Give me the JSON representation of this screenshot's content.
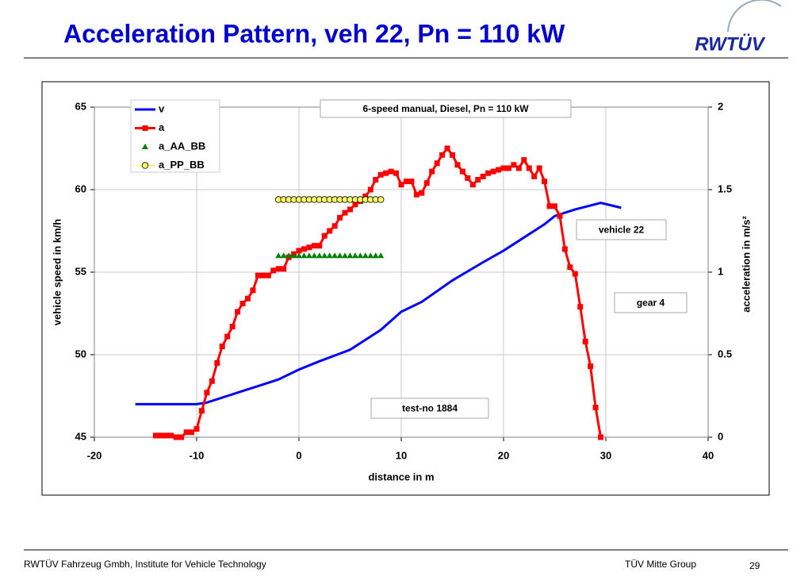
{
  "title": "Acceleration Pattern, veh 22, Pn = 110 kW",
  "logo": "RWTÜV",
  "footer": {
    "left": "RWTÜV Fahrzeug Gmbh, Institute for Vehicle Technology",
    "center": "TÜV Mitte Group",
    "page": "29"
  },
  "chart_data": {
    "type": "line",
    "xlabel": "distance in m",
    "ylabel": "vehicle speed in km/h",
    "y2label": "acceleration in m/s²",
    "xlim": [
      -20,
      40
    ],
    "xticks": [
      -20,
      -10,
      0,
      10,
      20,
      30,
      40
    ],
    "ylim": [
      45,
      65
    ],
    "yticks": [
      45,
      50,
      55,
      60,
      65
    ],
    "y2lim": [
      0,
      2
    ],
    "y2ticks": [
      0,
      0.5,
      1,
      1.5,
      2
    ],
    "grid": true,
    "legend": "upper left",
    "annotations": [
      "6-speed manual, Diesel, Pn = 110 kW",
      "vehicle 22",
      "gear 4",
      "test-no 1884"
    ],
    "series": [
      {
        "name": "v",
        "color": "#0000ff",
        "marker": null,
        "line": true,
        "x": [
          -16,
          -13,
          -10,
          -9,
          -8,
          -7,
          -6,
          -4,
          -2,
          0,
          2,
          5,
          8,
          10,
          12,
          15,
          18,
          20,
          22,
          24,
          25,
          27,
          29.5,
          31.5
        ],
        "values": [
          47.0,
          47.0,
          47.0,
          47.1,
          47.3,
          47.5,
          47.7,
          48.1,
          48.5,
          49.1,
          49.6,
          50.3,
          51.5,
          52.6,
          53.2,
          54.5,
          55.6,
          56.3,
          57.1,
          57.9,
          58.4,
          58.8,
          59.2,
          58.9
        ]
      },
      {
        "name": "a",
        "color": "#ff0000",
        "marker": "square",
        "line": true,
        "axis": "y2",
        "x": [
          -14,
          -13.5,
          -13,
          -12.5,
          -12,
          -11.5,
          -11,
          -10.5,
          -10,
          -9.5,
          -9,
          -8.5,
          -8,
          -7.5,
          -7,
          -6.5,
          -6,
          -5.5,
          -5,
          -4.5,
          -4,
          -3.5,
          -3,
          -2.5,
          -2,
          -1.5,
          -1,
          -0.5,
          0,
          0.5,
          1,
          1.5,
          2,
          2.5,
          3,
          3.5,
          4,
          4.5,
          5,
          5.5,
          6,
          6.5,
          7,
          7.5,
          8,
          8.5,
          9,
          9.5,
          10,
          10.5,
          11,
          11.5,
          12,
          12.5,
          13,
          13.5,
          14,
          14.5,
          15,
          15.5,
          16,
          16.5,
          17,
          17.5,
          18,
          18.5,
          19,
          19.5,
          20,
          20.5,
          21,
          21.5,
          22,
          22.5,
          23,
          23.5,
          24,
          24.5,
          25,
          25.5,
          26,
          26.5,
          27,
          27.5,
          28,
          28.5,
          29,
          29.5
        ],
        "values": [
          0.01,
          0.01,
          0.01,
          0.01,
          0.0,
          0.0,
          0.03,
          0.03,
          0.05,
          0.16,
          0.27,
          0.34,
          0.45,
          0.55,
          0.61,
          0.67,
          0.76,
          0.81,
          0.84,
          0.89,
          0.98,
          0.98,
          0.98,
          1.01,
          1.02,
          1.02,
          1.09,
          1.11,
          1.13,
          1.14,
          1.15,
          1.16,
          1.16,
          1.22,
          1.25,
          1.28,
          1.33,
          1.36,
          1.38,
          1.41,
          1.43,
          1.46,
          1.5,
          1.56,
          1.59,
          1.6,
          1.61,
          1.6,
          1.53,
          1.55,
          1.55,
          1.47,
          1.48,
          1.54,
          1.61,
          1.66,
          1.71,
          1.75,
          1.71,
          1.65,
          1.61,
          1.57,
          1.53,
          1.56,
          1.58,
          1.6,
          1.61,
          1.62,
          1.63,
          1.63,
          1.65,
          1.63,
          1.68,
          1.63,
          1.58,
          1.63,
          1.55,
          1.4,
          1.4,
          1.34,
          1.14,
          1.03,
          0.99,
          0.79,
          0.58,
          0.43,
          0.18,
          0.0
        ]
      },
      {
        "name": "a_AA_BB",
        "color": "#008000",
        "marker": "triangle",
        "line": false,
        "axis": "y2",
        "x": [
          -2,
          -1.5,
          -1,
          -0.5,
          0,
          0.5,
          1,
          1.5,
          2,
          2.5,
          3,
          3.5,
          4,
          4.5,
          5,
          5.5,
          6,
          6.5,
          7,
          7.5,
          8
        ],
        "values": [
          1.1,
          1.1,
          1.1,
          1.1,
          1.1,
          1.1,
          1.1,
          1.1,
          1.1,
          1.1,
          1.1,
          1.1,
          1.1,
          1.1,
          1.1,
          1.1,
          1.1,
          1.1,
          1.1,
          1.1,
          1.1
        ]
      },
      {
        "name": "a_PP_BB",
        "color": "#ffff66",
        "marker": "circle",
        "line": false,
        "axis": "y2",
        "x": [
          -2,
          -1.5,
          -1,
          -0.5,
          0,
          0.5,
          1,
          1.5,
          2,
          2.5,
          3,
          3.5,
          4,
          4.5,
          5,
          5.5,
          6,
          6.5,
          7,
          7.5,
          8
        ],
        "values": [
          1.44,
          1.44,
          1.44,
          1.44,
          1.44,
          1.44,
          1.44,
          1.44,
          1.44,
          1.44,
          1.44,
          1.44,
          1.44,
          1.44,
          1.44,
          1.44,
          1.44,
          1.44,
          1.44,
          1.44,
          1.44
        ]
      }
    ]
  }
}
